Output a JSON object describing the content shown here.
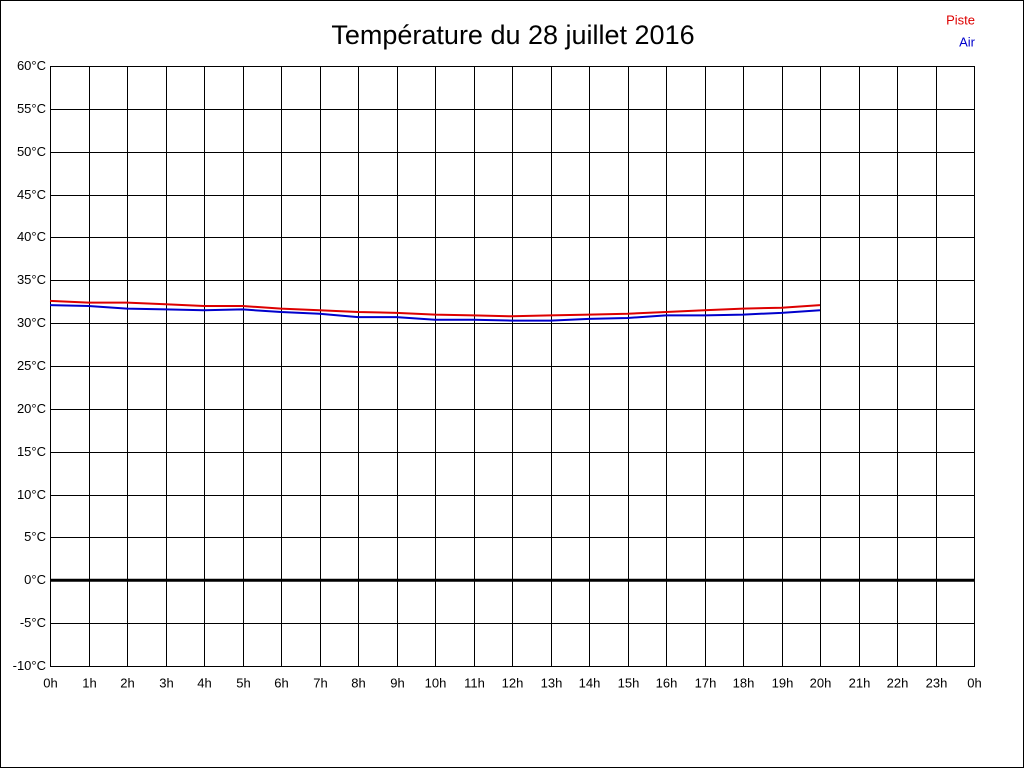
{
  "chart_data": {
    "type": "line",
    "title": "Température du 28 juillet 2016",
    "x": [
      0,
      1,
      2,
      3,
      4,
      5,
      6,
      7,
      8,
      9,
      10,
      11,
      12,
      13,
      14,
      15,
      16,
      17,
      18,
      19,
      20
    ],
    "series": [
      {
        "name": "Piste",
        "color": "#dd0000",
        "values": [
          32.6,
          32.4,
          32.4,
          32.2,
          32.0,
          32.0,
          31.7,
          31.5,
          31.3,
          31.2,
          31.0,
          30.9,
          30.8,
          30.9,
          31.0,
          31.1,
          31.3,
          31.5,
          31.7,
          31.8,
          32.1
        ]
      },
      {
        "name": "Air",
        "color": "#0000cc",
        "values": [
          32.1,
          32.0,
          31.7,
          31.6,
          31.5,
          31.6,
          31.3,
          31.1,
          30.7,
          30.7,
          30.4,
          30.4,
          30.3,
          30.3,
          30.5,
          30.6,
          30.9,
          30.9,
          31.0,
          31.2,
          31.5
        ]
      }
    ],
    "xlim": [
      0,
      24
    ],
    "xticks": [
      {
        "value": 0,
        "label": "0h"
      },
      {
        "value": 1,
        "label": "1h"
      },
      {
        "value": 2,
        "label": "2h"
      },
      {
        "value": 3,
        "label": "3h"
      },
      {
        "value": 4,
        "label": "4h"
      },
      {
        "value": 5,
        "label": "5h"
      },
      {
        "value": 6,
        "label": "6h"
      },
      {
        "value": 7,
        "label": "7h"
      },
      {
        "value": 8,
        "label": "8h"
      },
      {
        "value": 9,
        "label": "9h"
      },
      {
        "value": 10,
        "label": "10h"
      },
      {
        "value": 11,
        "label": "11h"
      },
      {
        "value": 12,
        "label": "12h"
      },
      {
        "value": 13,
        "label": "13h"
      },
      {
        "value": 14,
        "label": "14h"
      },
      {
        "value": 15,
        "label": "15h"
      },
      {
        "value": 16,
        "label": "16h"
      },
      {
        "value": 17,
        "label": "17h"
      },
      {
        "value": 18,
        "label": "18h"
      },
      {
        "value": 19,
        "label": "19h"
      },
      {
        "value": 20,
        "label": "20h"
      },
      {
        "value": 21,
        "label": "21h"
      },
      {
        "value": 22,
        "label": "22h"
      },
      {
        "value": 23,
        "label": "23h"
      },
      {
        "value": 24,
        "label": "0h"
      }
    ],
    "ylim": [
      -10,
      60
    ],
    "yticks": [
      {
        "value": 60,
        "label": "60°C"
      },
      {
        "value": 55,
        "label": "55°C"
      },
      {
        "value": 50,
        "label": "50°C"
      },
      {
        "value": 45,
        "label": "45°C"
      },
      {
        "value": 40,
        "label": "40°C"
      },
      {
        "value": 35,
        "label": "35°C"
      },
      {
        "value": 30,
        "label": "30°C"
      },
      {
        "value": 25,
        "label": "25°C"
      },
      {
        "value": 20,
        "label": "20°C"
      },
      {
        "value": 15,
        "label": "15°C"
      },
      {
        "value": 10,
        "label": "10°C"
      },
      {
        "value": 5,
        "label": "5°C"
      },
      {
        "value": 0,
        "label": "0°C"
      },
      {
        "value": -5,
        "label": "-5°C"
      },
      {
        "value": -10,
        "label": "-10°C"
      }
    ],
    "grid": true,
    "legend": "top-right"
  }
}
